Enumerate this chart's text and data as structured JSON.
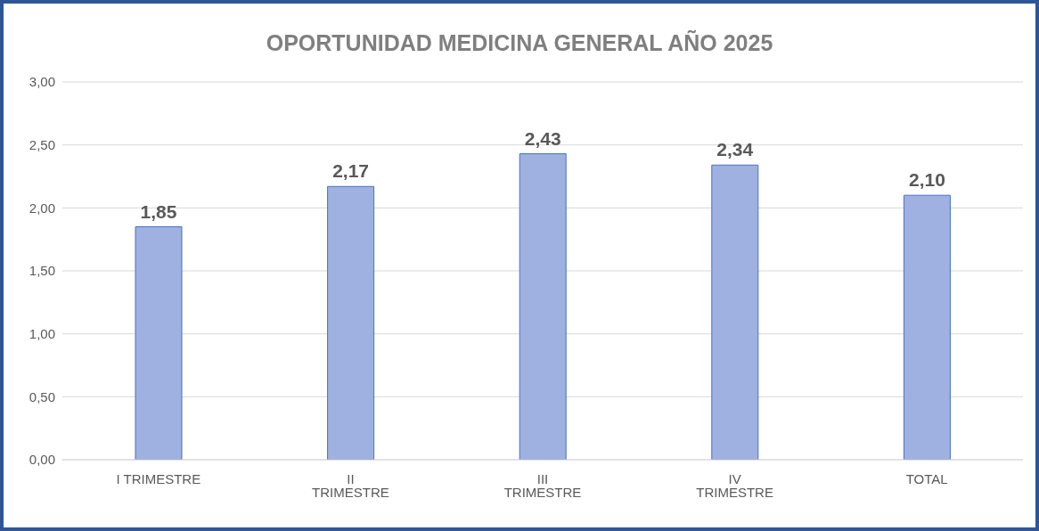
{
  "chart_data": {
    "type": "bar",
    "title": "OPORTUNIDAD MEDICINA GENERAL AÑO 2025",
    "categories": [
      "I TRIMESTRE",
      "II TRIMESTRE",
      "III TRIMESTRE",
      "IV TRIMESTRE",
      "TOTAL"
    ],
    "values": [
      1.85,
      2.17,
      2.43,
      2.34,
      2.1
    ],
    "value_labels": [
      "1,85",
      "2,17",
      "2,43",
      "2,34",
      "2,10"
    ],
    "color": "#9fb1e0",
    "ylim": [
      0,
      3
    ],
    "yticks": [
      {
        "value": 0,
        "label": "0,00"
      },
      {
        "value": 0.5,
        "label": "0,50"
      },
      {
        "value": 1,
        "label": "1,00"
      },
      {
        "value": 1.5,
        "label": "1,50"
      },
      {
        "value": 2,
        "label": "2,00"
      },
      {
        "value": 2.5,
        "label": "2,50"
      },
      {
        "value": 3,
        "label": "3,00"
      }
    ],
    "grid": "y"
  }
}
